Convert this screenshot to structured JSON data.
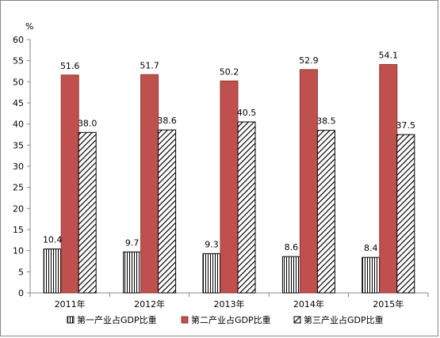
{
  "chart_data": {
    "type": "bar",
    "unit_label": "%",
    "categories": [
      "2011年",
      "2012年",
      "2013年",
      "2014年",
      "2015年"
    ],
    "series": [
      {
        "name": "第一产业占GDP比重",
        "values": [
          10.4,
          9.7,
          9.3,
          8.6,
          8.4
        ],
        "fill": "vertical-stripes",
        "color": "#000000"
      },
      {
        "name": "第二产业占GDP比重",
        "values": [
          51.6,
          51.7,
          50.2,
          52.9,
          54.1
        ],
        "fill": "solid",
        "color": "#C0504D"
      },
      {
        "name": "第三产业占GDP比重",
        "values": [
          38.0,
          38.6,
          40.5,
          38.5,
          37.5
        ],
        "fill": "diagonal-stripes",
        "color": "#000000"
      }
    ],
    "data_labels": [
      [
        "10.4",
        "9.7",
        "9.3",
        "8.6",
        "8.4"
      ],
      [
        "51.6",
        "51.7",
        "50.2",
        "52.9",
        "54.1"
      ],
      [
        "38.0",
        "38.6",
        "40.5",
        "38.5",
        "37.5"
      ]
    ],
    "yticks": [
      "0",
      "5",
      "10",
      "15",
      "20",
      "25",
      "30",
      "35",
      "40",
      "45",
      "50",
      "55",
      "60"
    ],
    "ylim": [
      0,
      60
    ],
    "grid": false,
    "legend_position": "bottom"
  }
}
